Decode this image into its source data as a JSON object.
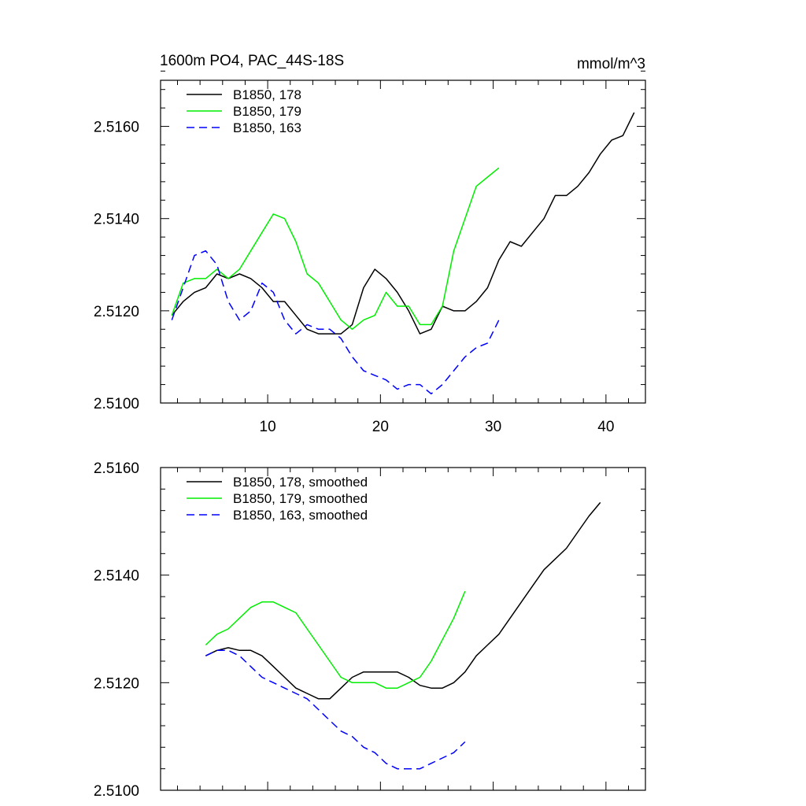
{
  "chart_data": [
    {
      "type": "line",
      "title_left": "1600m PO4, PAC_44S-18S",
      "title_right": "mmol/m^3",
      "xlim": [
        0.5,
        43.5
      ],
      "ylim": [
        2.51,
        2.517
      ],
      "x_ticks": [
        10,
        20,
        30,
        40
      ],
      "x_tick_labels": [
        "10",
        "20",
        "30",
        "40"
      ],
      "y_ticks": [
        2.51,
        2.512,
        2.514,
        2.516
      ],
      "y_tick_labels": [
        "2.5100",
        "2.5120",
        "2.5140",
        "2.5160"
      ],
      "series": [
        {
          "name": "B1850, 178",
          "color": "#000000",
          "dash": "solid",
          "x": [
            1.5,
            2.5,
            3.5,
            4.5,
            5.5,
            6.5,
            7.5,
            8.5,
            9.5,
            10.5,
            11.5,
            12.5,
            13.5,
            14.5,
            15.5,
            16.5,
            17.5,
            18.5,
            19.5,
            20.5,
            21.5,
            22.5,
            23.5,
            24.5,
            25.5,
            26.5,
            27.5,
            28.5,
            29.5,
            30.5,
            31.5,
            32.5,
            33.5,
            34.5,
            35.5,
            36.5,
            37.5,
            38.5,
            39.5,
            40.5,
            41.5,
            42.5
          ],
          "values": [
            2.5119,
            2.5122,
            2.5124,
            2.5125,
            2.5128,
            2.5127,
            2.5128,
            2.5127,
            2.5125,
            2.5122,
            2.5122,
            2.5119,
            2.5116,
            2.5115,
            2.5115,
            2.5115,
            2.5117,
            2.5125,
            2.5129,
            2.5127,
            2.5124,
            2.512,
            2.5115,
            2.5116,
            2.5121,
            2.512,
            2.512,
            2.5122,
            2.5125,
            2.5131,
            2.5135,
            2.5134,
            2.5137,
            2.514,
            2.5145,
            2.5145,
            2.5147,
            2.515,
            2.5154,
            2.5157,
            2.5158,
            2.5163
          ]
        },
        {
          "name": "B1850, 179",
          "color": "#00ee00",
          "dash": "solid",
          "x": [
            1.5,
            2.5,
            3.5,
            4.5,
            5.5,
            6.5,
            7.5,
            8.5,
            9.5,
            10.5,
            11.5,
            12.5,
            13.5,
            14.5,
            15.5,
            16.5,
            17.5,
            18.5,
            19.5,
            20.5,
            21.5,
            22.5,
            23.5,
            24.5,
            25.5,
            26.5,
            27.5,
            28.5,
            29.5,
            30.5
          ],
          "values": [
            2.5119,
            2.5126,
            2.5127,
            2.5127,
            2.5129,
            2.5127,
            2.5129,
            2.5133,
            2.5137,
            2.5141,
            2.514,
            2.5135,
            2.5128,
            2.5126,
            2.5122,
            2.5118,
            2.5116,
            2.5118,
            2.5119,
            2.5124,
            2.5121,
            2.5121,
            2.5117,
            2.5117,
            2.5121,
            2.5133,
            2.514,
            2.5147,
            2.5149,
            2.5151
          ]
        },
        {
          "name": "B1850, 163",
          "color": "#0000ff",
          "dash": "dashed",
          "x": [
            1.5,
            2.5,
            3.5,
            4.5,
            5.5,
            6.5,
            7.5,
            8.5,
            9.5,
            10.5,
            11.5,
            12.5,
            13.5,
            14.5,
            15.5,
            16.5,
            17.5,
            18.5,
            19.5,
            20.5,
            21.5,
            22.5,
            23.5,
            24.5,
            25.5,
            26.5,
            27.5,
            28.5,
            29.5,
            30.5
          ],
          "values": [
            2.5118,
            2.5125,
            2.5132,
            2.5133,
            2.513,
            2.5122,
            2.5118,
            2.512,
            2.5126,
            2.5124,
            2.5118,
            2.5115,
            2.5117,
            2.5116,
            2.5116,
            2.5114,
            2.511,
            2.5107,
            2.5106,
            2.5105,
            2.5103,
            2.5104,
            2.5104,
            2.5102,
            2.5104,
            2.5107,
            2.511,
            2.5112,
            2.5113,
            2.5118
          ]
        }
      ]
    },
    {
      "type": "line",
      "xlim": [
        0.5,
        43.5
      ],
      "ylim": [
        2.51,
        2.516
      ],
      "x_ticks": [
        10,
        20,
        30,
        40
      ],
      "y_ticks": [
        2.51,
        2.512,
        2.514,
        2.516
      ],
      "y_tick_labels": [
        "2.5100",
        "2.5120",
        "2.5140",
        "2.5160"
      ],
      "series": [
        {
          "name": "B1850, 178, smoothed",
          "color": "#000000",
          "dash": "solid",
          "x": [
            4.5,
            5.5,
            6.5,
            7.5,
            8.5,
            9.5,
            10.5,
            11.5,
            12.5,
            13.5,
            14.5,
            15.5,
            16.5,
            17.5,
            18.5,
            19.5,
            20.5,
            21.5,
            22.5,
            23.5,
            24.5,
            25.5,
            26.5,
            27.5,
            28.5,
            29.5,
            30.5,
            31.5,
            32.5,
            33.5,
            34.5,
            35.5,
            36.5,
            37.5,
            38.5,
            39.5
          ],
          "values": [
            2.5125,
            2.5126,
            2.51265,
            2.5126,
            2.5126,
            2.5125,
            2.5123,
            2.5121,
            2.5119,
            2.5118,
            2.5117,
            2.5117,
            2.5119,
            2.5121,
            2.5122,
            2.5122,
            2.5122,
            2.5122,
            2.5121,
            2.51195,
            2.5119,
            2.5119,
            2.512,
            2.5122,
            2.5125,
            2.5127,
            2.5129,
            2.5132,
            2.5135,
            2.5138,
            2.5141,
            2.5143,
            2.5145,
            2.5148,
            2.5151,
            2.51535
          ]
        },
        {
          "name": "B1850, 179, smoothed",
          "color": "#00ee00",
          "dash": "solid",
          "x": [
            4.5,
            5.5,
            6.5,
            7.5,
            8.5,
            9.5,
            10.5,
            11.5,
            12.5,
            13.5,
            14.5,
            15.5,
            16.5,
            17.5,
            18.5,
            19.5,
            20.5,
            21.5,
            22.5,
            23.5,
            24.5,
            25.5,
            26.5,
            27.5
          ],
          "values": [
            2.5127,
            2.5129,
            2.513,
            2.5132,
            2.5134,
            2.5135,
            2.5135,
            2.5134,
            2.5133,
            2.513,
            2.5127,
            2.5124,
            2.5121,
            2.512,
            2.512,
            2.512,
            2.5119,
            2.5119,
            2.512,
            2.5121,
            2.5124,
            2.5128,
            2.5132,
            2.5137
          ]
        },
        {
          "name": "B1850, 163, smoothed",
          "color": "#0000ff",
          "dash": "dashed",
          "x": [
            4.5,
            5.5,
            6.5,
            7.5,
            8.5,
            9.5,
            10.5,
            11.5,
            12.5,
            13.5,
            14.5,
            15.5,
            16.5,
            17.5,
            18.5,
            19.5,
            20.5,
            21.5,
            22.5,
            23.5,
            24.5,
            25.5,
            26.5,
            27.5
          ],
          "values": [
            2.5125,
            2.5126,
            2.5126,
            2.5125,
            2.5123,
            2.5121,
            2.512,
            2.5119,
            2.5118,
            2.5117,
            2.5115,
            2.5113,
            2.5111,
            2.511,
            2.5108,
            2.5107,
            2.5105,
            2.5104,
            2.5104,
            2.5104,
            2.5105,
            2.5106,
            2.5107,
            2.5109
          ]
        }
      ]
    }
  ]
}
